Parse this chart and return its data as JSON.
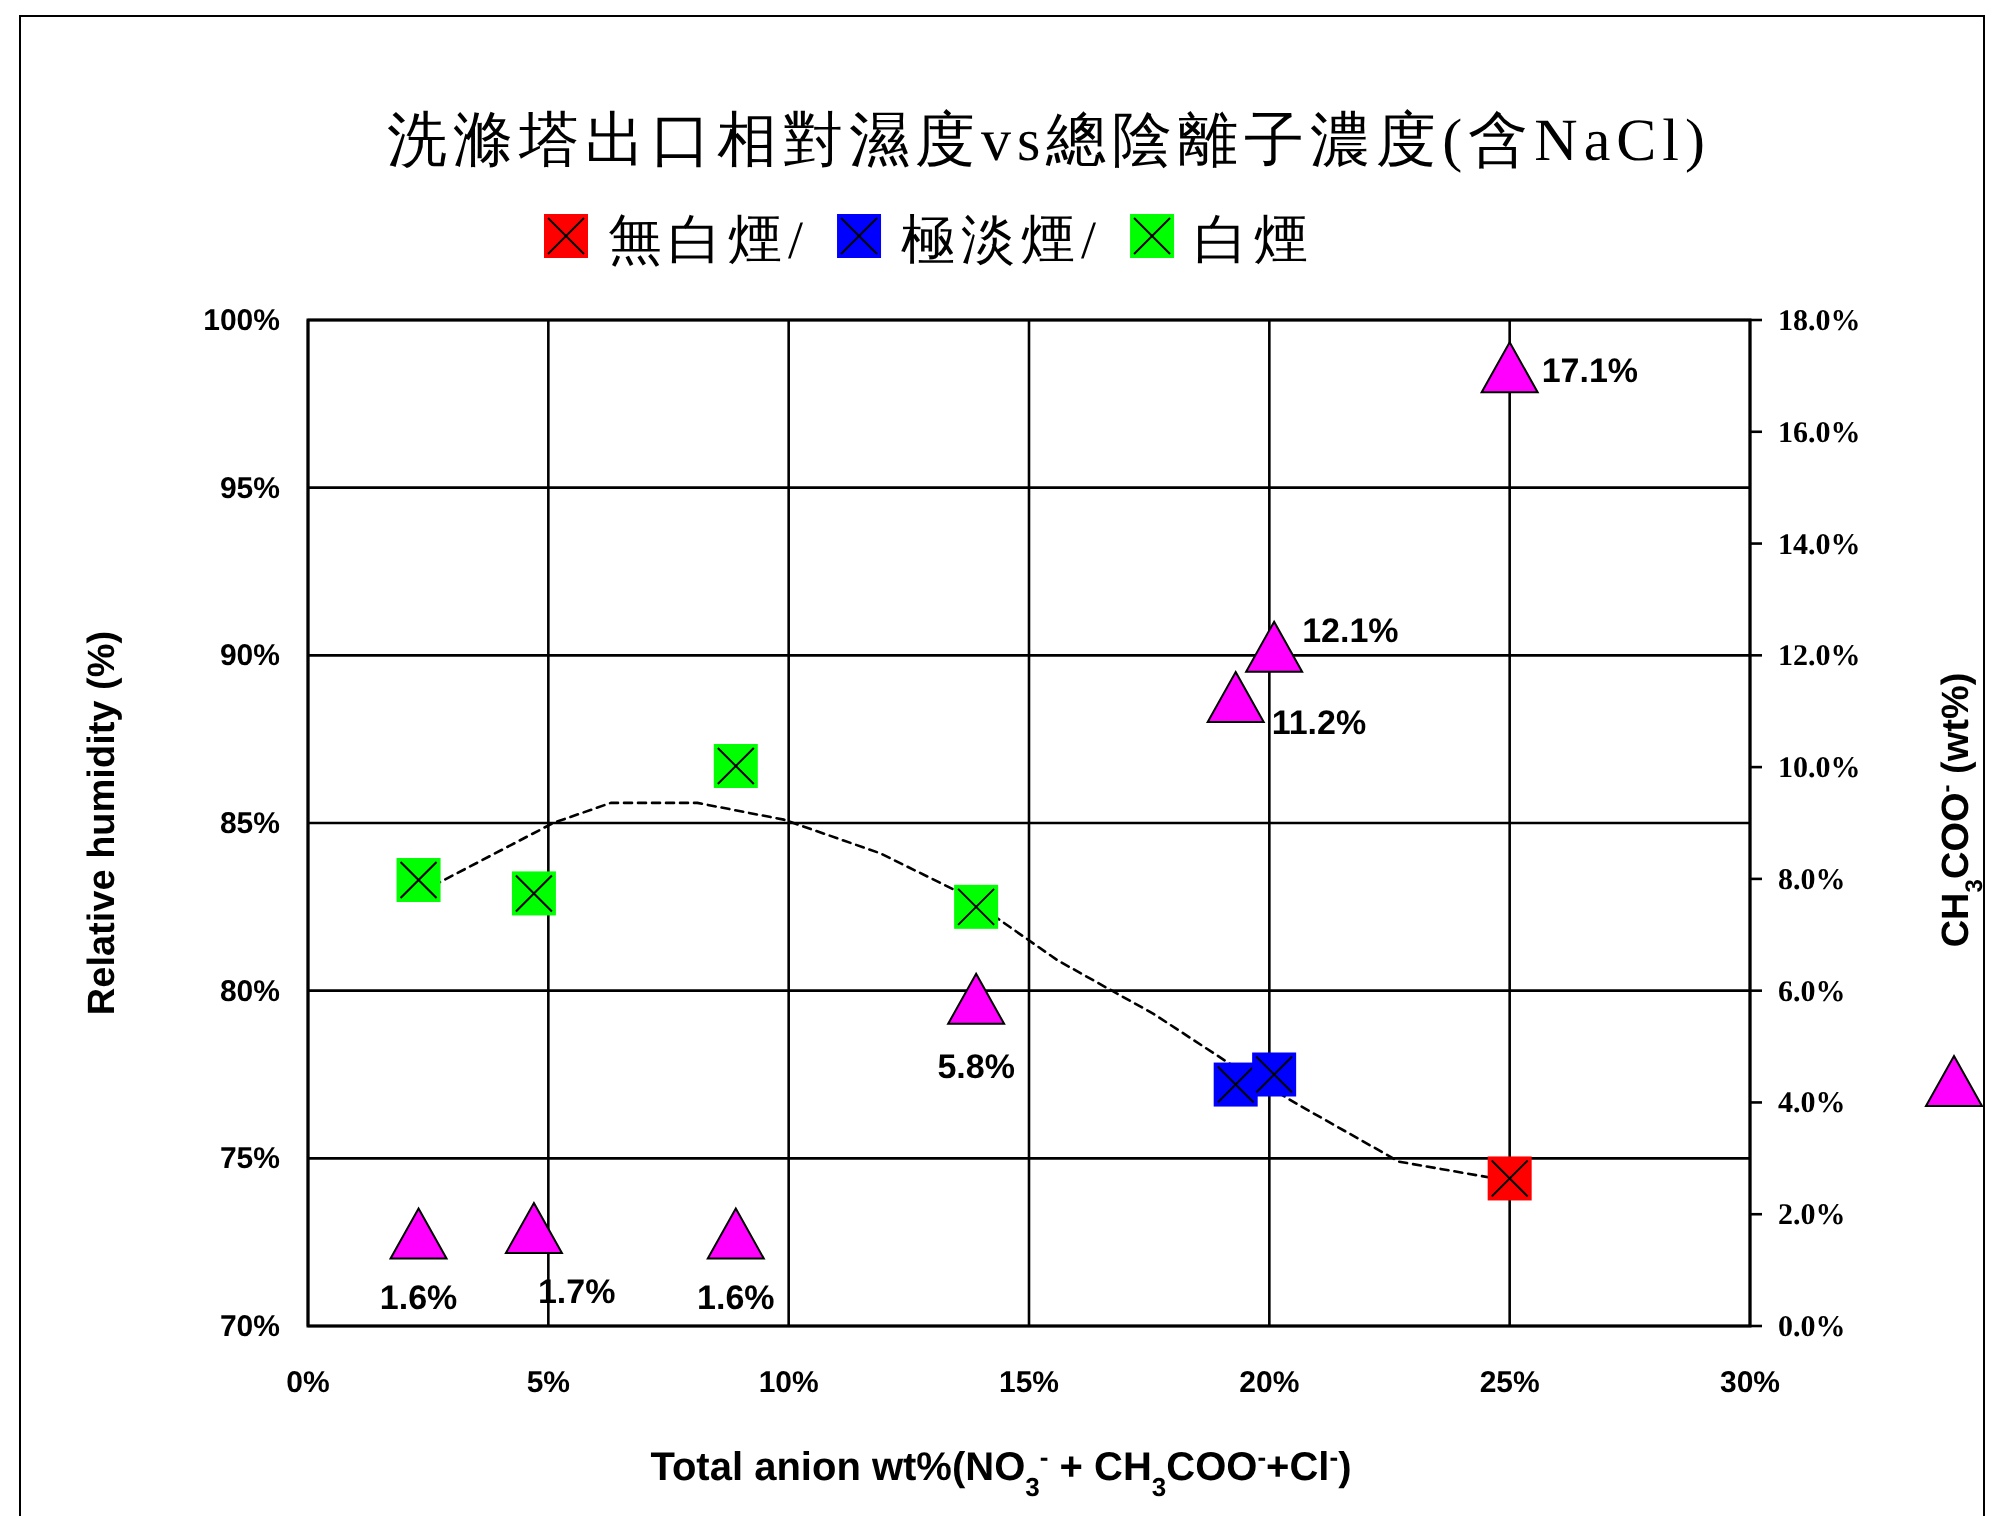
{
  "chart_data": {
    "type": "scatter",
    "title": "洗滌塔出口相對濕度vs總陰離子濃度(含NaCl)",
    "xlabel": "Total anion wt%(NO$_{3}$$^{-}$ + CH$_{3}$COO$^{-}$+Cl$^{-}$)",
    "ylabel": "Relative humidity (%)",
    "y2label": "CH$_{3}$COO$^{-}$ (wt%)",
    "xlim": [
      0,
      30
    ],
    "xticks": [
      {
        "value": 0,
        "label": "0%"
      },
      {
        "value": 5,
        "label": "5%"
      },
      {
        "value": 10,
        "label": "10%"
      },
      {
        "value": 15,
        "label": "15%"
      },
      {
        "value": 20,
        "label": "20%"
      },
      {
        "value": 25,
        "label": "25%"
      },
      {
        "value": 30,
        "label": "30%"
      }
    ],
    "ylim": [
      70,
      100
    ],
    "yticks": [
      {
        "value": 70,
        "label": "70%"
      },
      {
        "value": 75,
        "label": "75%"
      },
      {
        "value": 80,
        "label": "80%"
      },
      {
        "value": 85,
        "label": "85%"
      },
      {
        "value": 90,
        "label": "90%"
      },
      {
        "value": 95,
        "label": "95%"
      },
      {
        "value": 100,
        "label": "100%"
      }
    ],
    "y2lim": [
      0,
      18
    ],
    "y2ticks": [
      {
        "value": 0,
        "label": "0.0%"
      },
      {
        "value": 2,
        "label": "2.0%"
      },
      {
        "value": 4,
        "label": "4.0%"
      },
      {
        "value": 6,
        "label": "6.0%"
      },
      {
        "value": 8,
        "label": "8.0%"
      },
      {
        "value": 10,
        "label": "10.0%"
      },
      {
        "value": 12,
        "label": "12.0%"
      },
      {
        "value": 14,
        "label": "14.0%"
      },
      {
        "value": 16,
        "label": "16.0%"
      },
      {
        "value": 18,
        "label": "18.0%"
      }
    ],
    "grid": true,
    "legend": "top",
    "series": [
      {
        "name": "無白煙/",
        "color": "#ff0000",
        "marker": "square",
        "x": [
          25.0
        ],
        "values": [
          74.4
        ]
      },
      {
        "name": "極淡煙/",
        "color": "#0000ff",
        "marker": "square",
        "x": [
          19.3,
          20.1
        ],
        "values": [
          77.2,
          77.5
        ]
      },
      {
        "name": "白煙",
        "color": "#00ff00",
        "marker": "square",
        "x": [
          2.3,
          4.7,
          8.9,
          13.9
        ],
        "values": [
          83.3,
          82.9,
          86.7,
          82.5
        ]
      },
      {
        "axis": "y2",
        "color": "#ff00ff",
        "marker": "triangle",
        "x": [
          2.3,
          4.7,
          8.9,
          13.9,
          19.3,
          20.1,
          25.0
        ],
        "values": [
          1.6,
          1.7,
          1.6,
          5.8,
          11.2,
          12.1,
          17.1
        ],
        "value_labels": [
          "1.6%",
          "1.7%",
          "1.6%",
          "5.8%",
          "11.2%",
          "12.1%",
          "17.1%"
        ]
      },
      {
        "type": "line",
        "color": "#000000",
        "line_style": "dashed",
        "marker": "none",
        "x": [
          2.3,
          2.7,
          5.1,
          6.3,
          8.1,
          9.9,
          11.9,
          13.6,
          15.6,
          17.6,
          19.2,
          20.6,
          22.7,
          24.7,
          25.0
        ],
        "values": [
          83.1,
          83.2,
          85.0,
          85.6,
          85.6,
          85.1,
          84.1,
          82.9,
          80.9,
          79.3,
          77.8,
          76.6,
          74.9,
          74.4,
          74.4
        ]
      }
    ]
  }
}
